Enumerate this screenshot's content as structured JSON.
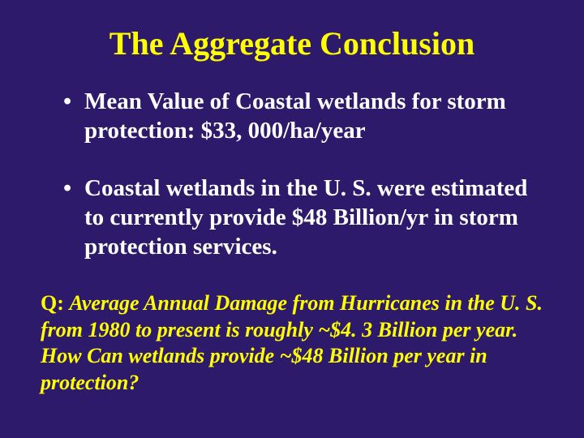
{
  "colors": {
    "background": "#2e1a6b",
    "title": "#ffff00",
    "bullet_text": "#ffffff",
    "question_text": "#ffff00"
  },
  "typography": {
    "font_family": "Times New Roman",
    "title_fontsize": 40,
    "bullet_fontsize": 29,
    "question_fontsize": 26
  },
  "title": "The Aggregate Conclusion",
  "bullets": [
    "Mean Value of Coastal wetlands for storm protection: $33, 000/ha/year",
    "Coastal wetlands in the U. S. were estimated to currently provide $48 Billion/yr in storm protection services."
  ],
  "question_prefix": "Q: ",
  "question_body": "Average Annual Damage from Hurricanes in the U. S. from 1980 to present is roughly ~$4. 3 Billion per year. How Can wetlands provide ~$48 Billion per year in protection?"
}
